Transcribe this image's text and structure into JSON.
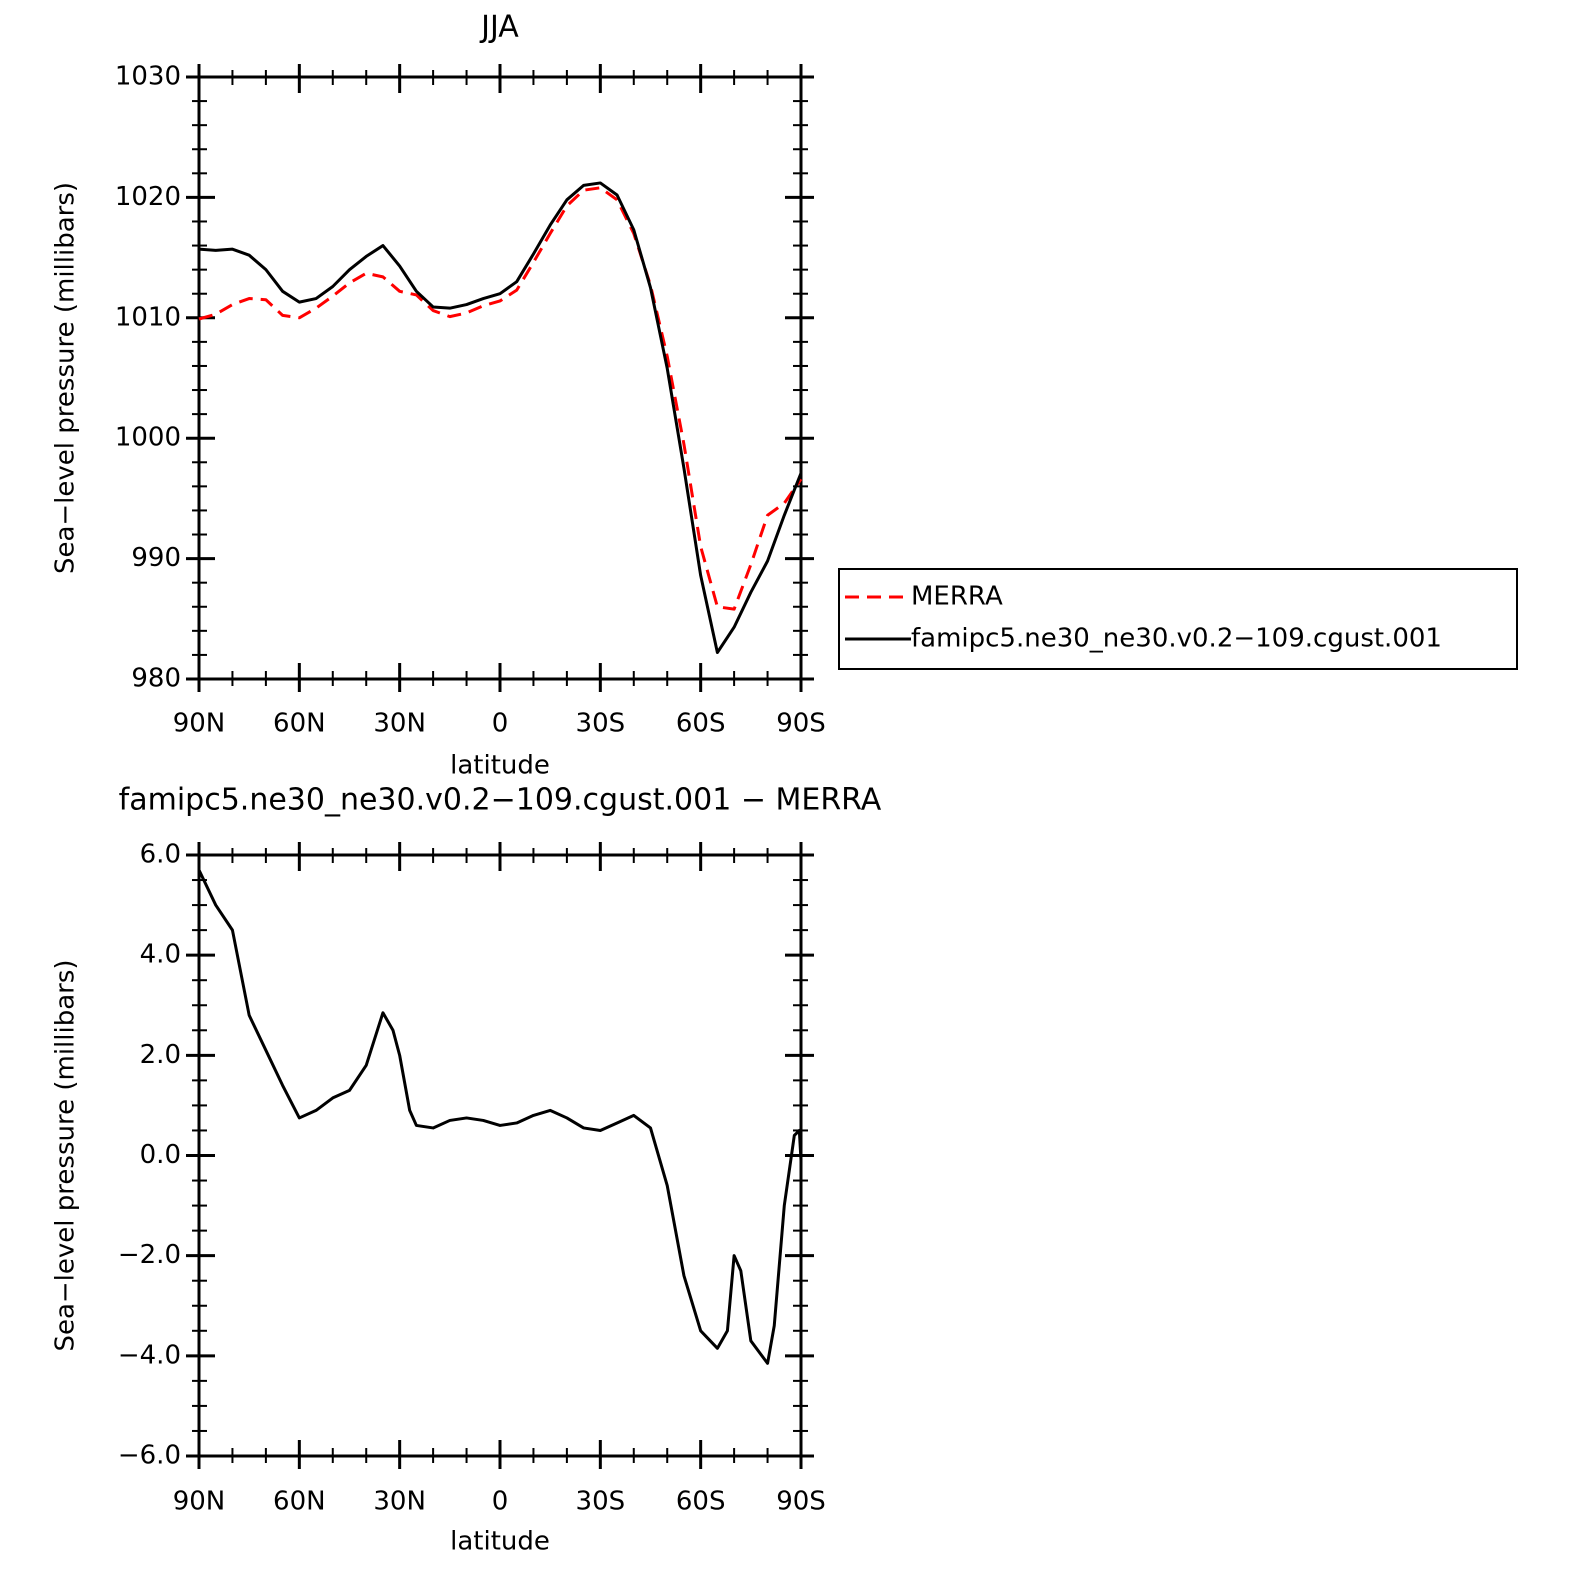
{
  "chart_data": [
    {
      "type": "line",
      "title": "JJA",
      "xlabel": "latitude",
      "ylabel": "Sea−level pressure (millibars)",
      "x": [
        90,
        85,
        80,
        75,
        70,
        65,
        60,
        55,
        50,
        45,
        40,
        35,
        30,
        25,
        20,
        15,
        10,
        5,
        0,
        -5,
        -10,
        -15,
        -20,
        -25,
        -30,
        -35,
        -40,
        -45,
        -50,
        -55,
        -60,
        -65,
        -70,
        -75,
        -80,
        -85,
        -90
      ],
      "xlim": [
        90,
        -90
      ],
      "xticks": [
        {
          "value": 90,
          "label": "90N"
        },
        {
          "value": 60,
          "label": "60N"
        },
        {
          "value": 30,
          "label": "30N"
        },
        0,
        {
          "value": -30,
          "label": "30S"
        },
        {
          "value": -60,
          "label": "60S"
        },
        {
          "value": -90,
          "label": "90S"
        }
      ],
      "ylim": [
        980,
        1030
      ],
      "yticks": [
        980,
        990,
        1000,
        1010,
        1020,
        1030
      ],
      "legend": "right",
      "series": [
        {
          "name": "MERRA",
          "color": "#ff0000",
          "style": "dashed",
          "values": [
            1009.9,
            1010.3,
            1011.1,
            1011.6,
            1011.5,
            1010.2,
            1010.0,
            1010.8,
            1011.8,
            1012.9,
            1013.7,
            1013.4,
            1012.2,
            1011.9,
            1010.6,
            1010.1,
            1010.4,
            1011.0,
            1011.4,
            1012.3,
            1014.6,
            1017.0,
            1019.3,
            1020.6,
            1020.8,
            1019.8,
            1017.0,
            1012.7,
            1006.8,
            999.5,
            991.0,
            986.0,
            985.8,
            989.5,
            993.6,
            994.6,
            996.6
          ]
        },
        {
          "name": "famipc5.ne30_ne30.v0.2−109.cgust.001",
          "color": "#000000",
          "style": "solid",
          "values": [
            1015.7,
            1015.6,
            1015.7,
            1015.2,
            1014.0,
            1012.2,
            1011.3,
            1011.6,
            1012.6,
            1014.0,
            1015.1,
            1016.0,
            1014.3,
            1012.2,
            1010.9,
            1010.8,
            1011.1,
            1011.6,
            1012.0,
            1013.0,
            1015.3,
            1017.7,
            1019.8,
            1021.0,
            1021.2,
            1020.2,
            1017.3,
            1012.5,
            1005.8,
            997.5,
            988.6,
            982.2,
            984.3,
            987.2,
            989.8,
            993.6,
            997.1
          ]
        }
      ]
    },
    {
      "type": "line",
      "title": "famipc5.ne30_ne30.v0.2−109.cgust.001 − MERRA",
      "xlabel": "latitude",
      "ylabel": "Sea−level pressure (millibars)",
      "x": [
        90,
        85,
        80,
        75,
        70,
        65,
        60,
        55,
        50,
        45,
        40,
        35,
        32,
        30,
        27,
        25,
        20,
        15,
        10,
        5,
        0,
        -5,
        -10,
        -15,
        -20,
        -25,
        -30,
        -35,
        -40,
        -45,
        -50,
        -55,
        -60,
        -65,
        -68,
        -70,
        -72,
        -75,
        -80,
        -82,
        -85,
        -88,
        -89.5,
        -90
      ],
      "xlim": [
        90,
        -90
      ],
      "xticks": [
        {
          "value": 90,
          "label": "90N"
        },
        {
          "value": 60,
          "label": "60N"
        },
        {
          "value": 30,
          "label": "30N"
        },
        0,
        {
          "value": -30,
          "label": "30S"
        },
        {
          "value": -60,
          "label": "60S"
        },
        {
          "value": -90,
          "label": "90S"
        }
      ],
      "ylim": [
        -6,
        6
      ],
      "yticks": [
        {
          "value": -6,
          "label": "−6.0"
        },
        {
          "value": -4,
          "label": "−4.0"
        },
        {
          "value": -2,
          "label": "−2.0"
        },
        {
          "value": 0,
          "label": "0.0"
        },
        {
          "value": 2,
          "label": "2.0"
        },
        {
          "value": 4,
          "label": "4.0"
        },
        {
          "value": 6,
          "label": "6.0"
        }
      ],
      "color": "#000000",
      "values": [
        5.7,
        5.0,
        4.5,
        2.8,
        2.1,
        1.4,
        0.75,
        0.9,
        1.15,
        1.3,
        1.8,
        2.85,
        2.5,
        2.0,
        0.9,
        0.6,
        0.55,
        0.7,
        0.75,
        0.7,
        0.6,
        0.65,
        0.8,
        0.9,
        0.75,
        0.55,
        0.5,
        0.65,
        0.8,
        0.55,
        -0.6,
        -2.4,
        -3.5,
        -3.85,
        -3.5,
        -2.0,
        -2.3,
        -3.7,
        -4.15,
        -3.4,
        -1.0,
        0.4,
        0.5,
        -0.1
      ]
    }
  ]
}
